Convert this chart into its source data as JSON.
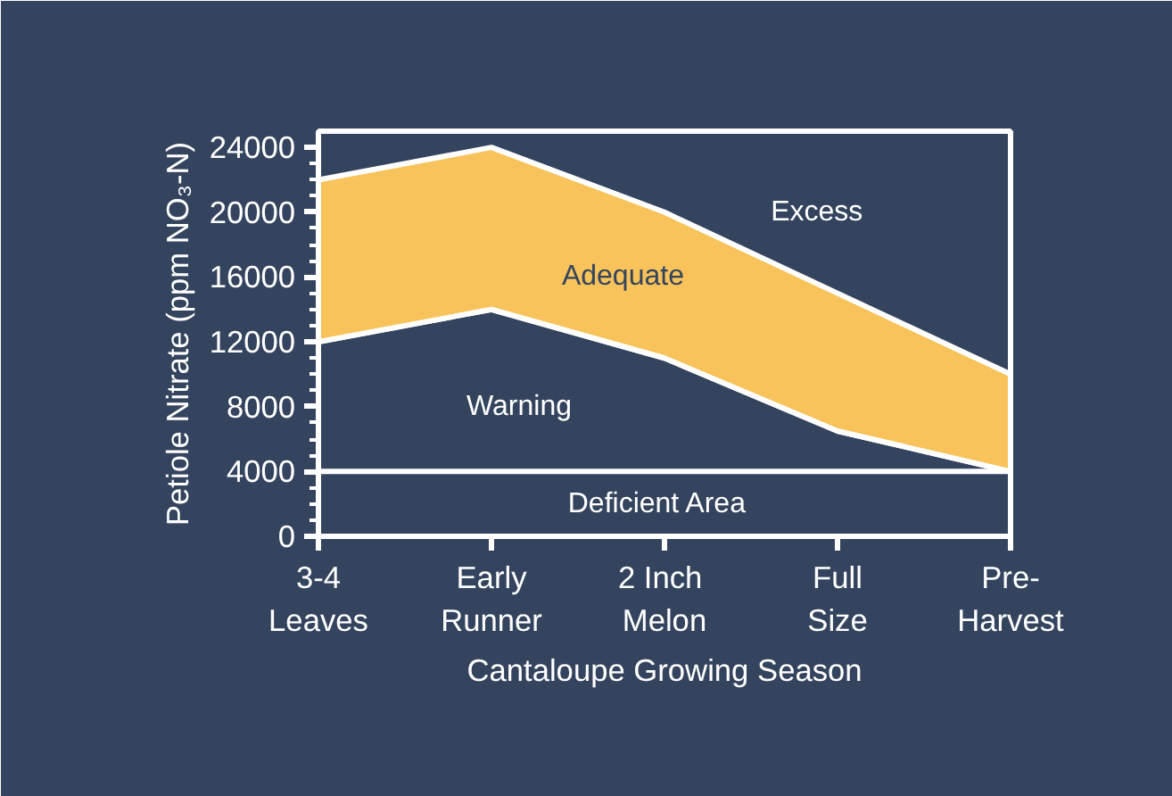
{
  "chart_data": {
    "type": "area",
    "stacked": true,
    "xlabel": "Cantaloupe Growing Season",
    "ylabel": "Petiole Nitrate (ppm NO₃-N)",
    "categories": [
      "3-4\nLeaves",
      "Early\nRunner",
      "2  Inch\nMelon",
      "Full\nSize",
      "Pre-\nHarvest"
    ],
    "series": [
      {
        "color": "#34445e",
        "values": [
          12000,
          14000,
          11000,
          6500,
          4000
        ]
      },
      {
        "color": "#f7c35a",
        "values": [
          10000,
          10000,
          9000,
          8500,
          6000
        ]
      }
    ],
    "ylim": [
      0,
      25000
    ],
    "yticks": [
      0,
      {
        "value": 1000,
        "label": null
      },
      {
        "value": 2000,
        "label": null
      },
      {
        "value": 3000,
        "label": null
      },
      4000,
      {
        "value": 5000,
        "label": null
      },
      {
        "value": 6000,
        "label": null
      },
      {
        "value": 7000,
        "label": null
      },
      8000,
      {
        "value": 9000,
        "label": null
      },
      {
        "value": 10000,
        "label": null
      },
      {
        "value": 11000,
        "label": null
      },
      12000,
      {
        "value": 13000,
        "label": null
      },
      {
        "value": 14000,
        "label": null
      },
      {
        "value": 15000,
        "label": null
      },
      16000,
      {
        "value": 17000,
        "label": null
      },
      {
        "value": 18000,
        "label": null
      },
      {
        "value": 19000,
        "label": null
      },
      20000,
      {
        "value": 21000,
        "label": null
      },
      {
        "value": 22000,
        "label": null
      },
      {
        "value": 23000,
        "label": null
      },
      24000
    ],
    "ref_lines": [
      {
        "axis": "y",
        "value": 4000,
        "color": "#ffffff"
      }
    ],
    "annotations": [
      "Excess",
      "Adequate",
      "Warning",
      "Deficient Area"
    ]
  }
}
